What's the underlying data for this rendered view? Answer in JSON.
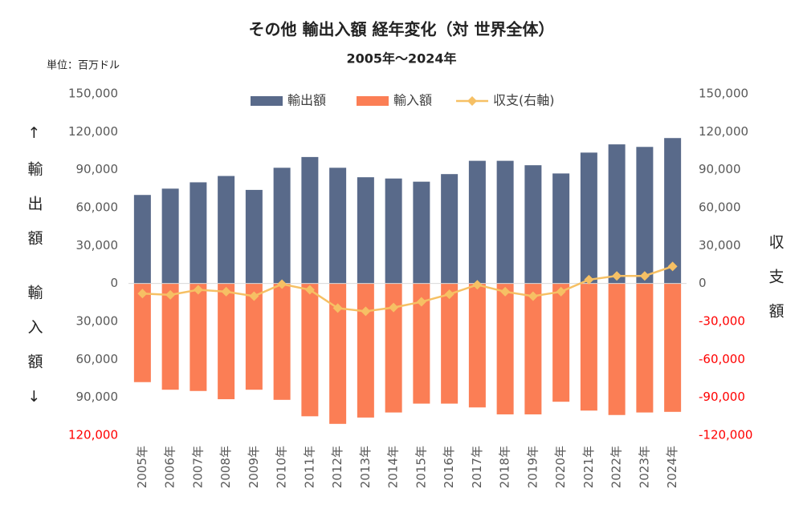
{
  "chart_data": {
    "type": "bar",
    "title": "その他 輸出入額 経年変化（対 世界全体）",
    "subtitle": "2005年～2024年",
    "unit_label": "単位：百万ドル",
    "y_axis_label_top": "↑輸出額",
    "y_axis_label_bottom": "輸入額↓",
    "y2_axis_label": "収支額",
    "categories": [
      "2005年",
      "2006年",
      "2007年",
      "2008年",
      "2009年",
      "2010年",
      "2011年",
      "2012年",
      "2013年",
      "2014年",
      "2015年",
      "2016年",
      "2017年",
      "2018年",
      "2019年",
      "2020年",
      "2021年",
      "2022年",
      "2023年",
      "2024年"
    ],
    "series": [
      {
        "name": "輸出額",
        "type": "bar",
        "color": "#596a8a",
        "values": [
          70000,
          75000,
          80000,
          85000,
          74000,
          91500,
          100000,
          91500,
          84000,
          83000,
          80500,
          86500,
          97000,
          97000,
          93500,
          87000,
          103500,
          110000,
          108000,
          115000
        ]
      },
      {
        "name": "輸入額",
        "type": "bar",
        "color": "#fb7e55",
        "values": [
          -78000,
          -84000,
          -85000,
          -91500,
          -84000,
          -92000,
          -105000,
          -111000,
          -106000,
          -102000,
          -95000,
          -95000,
          -98000,
          -103500,
          -103500,
          -93500,
          -100500,
          -104000,
          -102000,
          -101500
        ]
      },
      {
        "name": "収支(右軸)",
        "type": "line",
        "axis": "y2",
        "color": "#f6c064",
        "values": [
          -8000,
          -9000,
          -5000,
          -6500,
          -10000,
          -500,
          -5000,
          -19500,
          -22000,
          -19000,
          -14500,
          -8500,
          -1000,
          -6500,
          -10000,
          -6500,
          3000,
          6000,
          6000,
          13500
        ]
      }
    ],
    "ylim": [
      -120000,
      150000
    ],
    "yticks": [
      {
        "value": -120000,
        "label": "120,000"
      },
      {
        "value": -90000,
        "label": "90,000"
      },
      {
        "value": -60000,
        "label": "60,000"
      },
      {
        "value": -30000,
        "label": "30,000"
      },
      0,
      {
        "value": 30000,
        "label": "30,000"
      },
      {
        "value": 60000,
        "label": "60,000"
      },
      {
        "value": 90000,
        "label": "90,000"
      },
      {
        "value": 120000,
        "label": "120,000"
      },
      {
        "value": 150000,
        "label": "150,000"
      }
    ],
    "y2lim": [
      -120000,
      150000
    ],
    "y2ticks": [
      {
        "value": -120000,
        "label": "-120,000"
      },
      {
        "value": -90000,
        "label": "-90,000"
      },
      {
        "value": -60000,
        "label": "-60,000"
      },
      {
        "value": -30000,
        "label": "-30,000"
      },
      0,
      {
        "value": 30000,
        "label": "30,000"
      },
      {
        "value": 60000,
        "label": "60,000"
      },
      {
        "value": 90000,
        "label": "90,000"
      },
      {
        "value": 120000,
        "label": "120,000"
      },
      {
        "value": 150000,
        "label": "150,000"
      }
    ],
    "legend": "top",
    "grid": false
  }
}
